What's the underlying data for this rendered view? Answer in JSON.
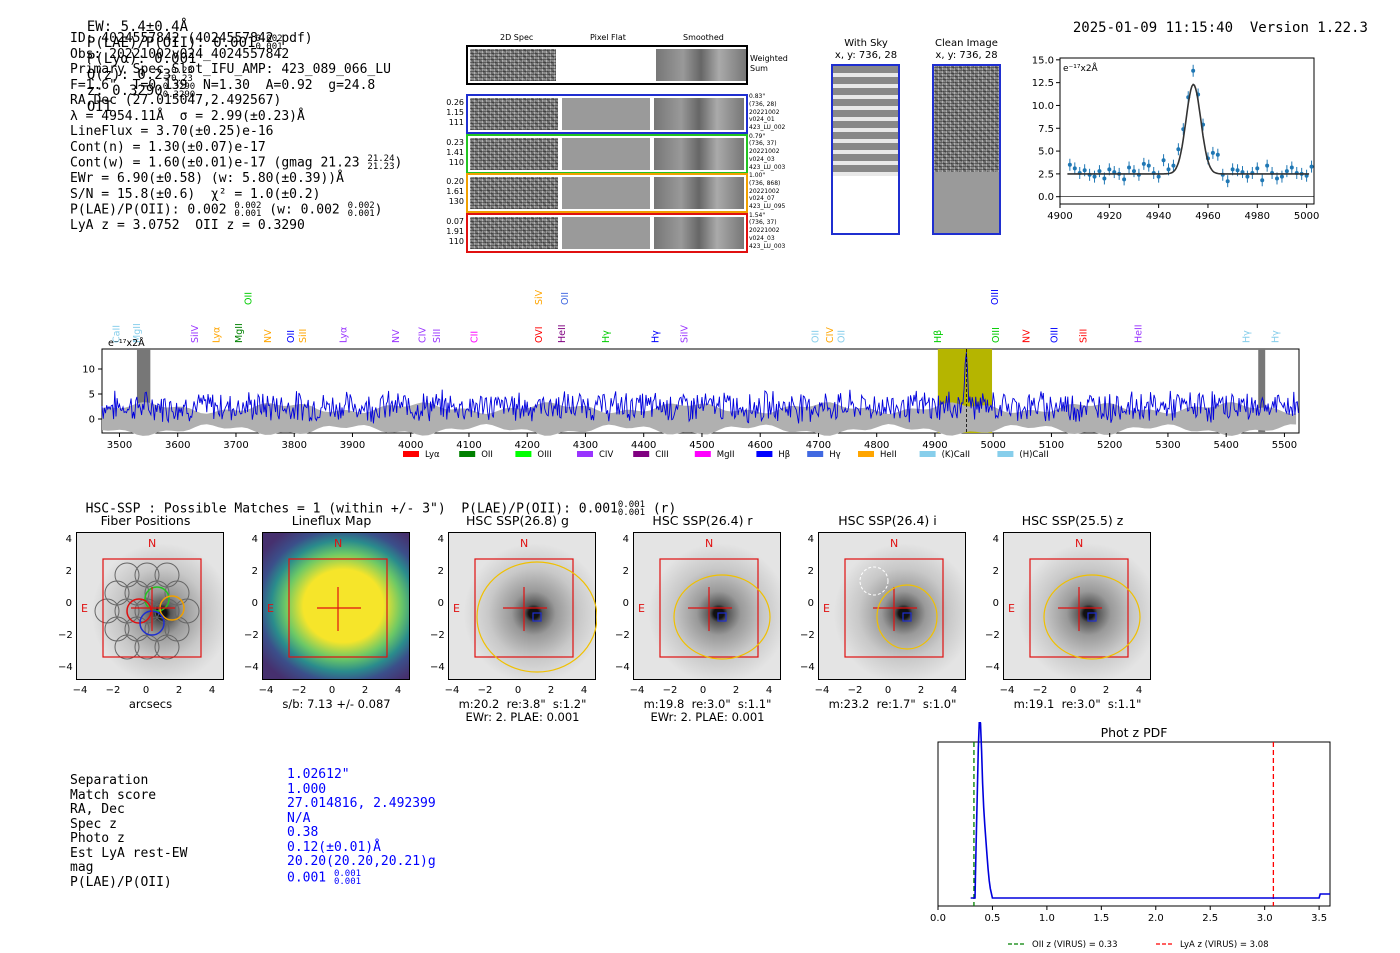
{
  "header": {
    "ew": "EW: 5.4±0.4Å",
    "plae_lbl": "P(LAE)/P(OII): 0.001",
    "plae_up": "0.002",
    "plae_dn": "0.001",
    "plya": "P(Lyα): 0.001",
    "qz_lbl": "Q(z): 0.23",
    "qz_up": "0.23",
    "qz_dn": "0.23",
    "z_lbl": "z: 0.3290",
    "z_up": "0.3290",
    "z_dn": "0.3290",
    "z_line": "OII",
    "timestamp": "2025-01-09 11:15:40",
    "version": "Version 1.22.3"
  },
  "info": {
    "id": "ID: 4024557842 (4024557842.pdf)",
    "obs": "Obs: 20221002v024_4024557842",
    "primary": "Primary Spec_Slot_IFU_AMP: 423_089_066_LU",
    "params": "F=1.6\"  T=0.139  N=1.30  A=0.92  g=24.8",
    "radec": "RA,Dec (27.015047,2.492567)",
    "lambda": "λ = 4954.11Å  σ = 2.99(±0.23)Å",
    "lineflux": "LineFlux = 3.70(±0.25)e-16",
    "contn": "Cont(n) = 1.30(±0.07)e-17",
    "contw": "Cont(w) = 1.60(±0.01)e-17 (gmag 21.23",
    "contw_up": "21.24",
    "contw_dn": "21.23",
    "ewr": "EWr = 6.90(±0.58) (w: 5.80(±0.39))Å",
    "sn": "S/N = 15.8(±0.6)  χ² = 1.0(±0.2)",
    "plae": "P(LAE)/P(OII): 0.002",
    "plae_up": "0.002",
    "plae_dn": "0.001",
    "plae_w": "(w: 0.002",
    "plae_w_up": "0.002",
    "plae_w_dn": "0.001",
    "lya": "LyA z = 3.0752  OII z = 0.3290"
  },
  "cutouts": {
    "col_titles": [
      "2D Spec",
      "Pixel Flat",
      "Smoothed"
    ],
    "weighted_sum": "Weighted Sum",
    "rows": [
      {
        "nums": [
          "0.26",
          "1.15",
          "111"
        ],
        "side": [
          "0.83\"",
          "(736, 28)",
          "20221002",
          "v024_01",
          "423_LU_002"
        ],
        "color": "#1f2fd0"
      },
      {
        "nums": [
          "0.23",
          "1.41",
          "110"
        ],
        "side": [
          "0.79\"",
          "(736, 37)",
          "20221002",
          "v024_03",
          "423_LU_003"
        ],
        "color": "#22c422"
      },
      {
        "nums": [
          "0.20",
          "1.61",
          "130"
        ],
        "side": [
          "1.00\"",
          "(736, 868)",
          "20221002",
          "v024_07",
          "423_LU_095"
        ],
        "color": "#f0a000"
      },
      {
        "nums": [
          "0.07",
          "1.91",
          "110"
        ],
        "side": [
          "1.54\"",
          "(736, 37)",
          "20221002",
          "v024_03",
          "423_LU_003"
        ],
        "color": "#e01010"
      }
    ]
  },
  "with_sky": {
    "title": "With Sky",
    "sub": "x, y: 736, 28"
  },
  "clean_image": {
    "title": "Clean Image",
    "sub": "x, y: 736, 28"
  },
  "fullspec_legend": [
    {
      "name": "Lyα",
      "color": "#ff0000"
    },
    {
      "name": "OII",
      "color": "#008000"
    },
    {
      "name": "OIII",
      "color": "#00ff00"
    },
    {
      "name": "CIV",
      "color": "#9933ff"
    },
    {
      "name": "CIII",
      "color": "#800080"
    },
    {
      "name": "MgII",
      "color": "#ff00ff"
    },
    {
      "name": "Hβ",
      "color": "#0000ff"
    },
    {
      "name": "Hγ",
      "color": "#4169e1"
    },
    {
      "name": "HeII",
      "color": "#ffa500"
    },
    {
      "name": "(K)CaII",
      "color": "#87ceeb"
    },
    {
      "name": "(H)CaII",
      "color": "#87ceeb"
    }
  ],
  "line_labels": [
    {
      "t": "OII",
      "w": 3727,
      "c": "#00cc00",
      "row": 0
    },
    {
      "t": "SiV",
      "w": 4225,
      "c": "#ffa500",
      "row": 0
    },
    {
      "t": "OII",
      "w": 4270,
      "c": "#4169e1",
      "row": 0
    },
    {
      "t": "OIII",
      "w": 5008,
      "c": "#0000ff",
      "row": 0
    },
    {
      "t": "CaII",
      "w": 3500,
      "c": "#87ceeb",
      "row": 1
    },
    {
      "t": "MgII",
      "w": 3535,
      "c": "#87ceeb",
      "row": 1
    },
    {
      "t": "SiIV",
      "w": 3635,
      "c": "#9933ff",
      "row": 1
    },
    {
      "t": "Lyα",
      "w": 3672,
      "c": "#ffa500",
      "row": 1
    },
    {
      "t": "MgII",
      "w": 3710,
      "c": "#008000",
      "row": 1
    },
    {
      "t": "NV",
      "w": 3760,
      "c": "#ffa500",
      "row": 1
    },
    {
      "t": "OII",
      "w": 3800,
      "c": "#0000ff",
      "row": 1
    },
    {
      "t": "SiII",
      "w": 3820,
      "c": "#ffa500",
      "row": 1
    },
    {
      "t": "Lyα",
      "w": 3890,
      "c": "#9933ff",
      "row": 1
    },
    {
      "t": "NV",
      "w": 3980,
      "c": "#9933ff",
      "row": 1
    },
    {
      "t": "CIV",
      "w": 4025,
      "c": "#9933ff",
      "row": 1
    },
    {
      "t": "SiII",
      "w": 4050,
      "c": "#9933ff",
      "row": 1
    },
    {
      "t": "CII",
      "w": 4115,
      "c": "#ff00ff",
      "row": 1
    },
    {
      "t": "OVI",
      "w": 4225,
      "c": "#ff0000",
      "row": 1
    },
    {
      "t": "HeII",
      "w": 4265,
      "c": "#800080",
      "row": 1
    },
    {
      "t": "Hγ",
      "w": 4340,
      "c": "#00cc00",
      "row": 1
    },
    {
      "t": "Hγ",
      "w": 4425,
      "c": "#0000ff",
      "row": 1
    },
    {
      "t": "SiIV",
      "w": 4475,
      "c": "#9933ff",
      "row": 1
    },
    {
      "t": "OII",
      "w": 4700,
      "c": "#87ceeb",
      "row": 1
    },
    {
      "t": "CIV",
      "w": 4725,
      "c": "#ffa500",
      "row": 1
    },
    {
      "t": "OII",
      "w": 4745,
      "c": "#87ceeb",
      "row": 1
    },
    {
      "t": "Hβ",
      "w": 4910,
      "c": "#00cc00",
      "row": 1
    },
    {
      "t": "OIII",
      "w": 5010,
      "c": "#00cc00",
      "row": 1
    },
    {
      "t": "NV",
      "w": 5062,
      "c": "#ff0000",
      "row": 1
    },
    {
      "t": "OIII",
      "w": 5110,
      "c": "#0000ff",
      "row": 1
    },
    {
      "t": "SiII",
      "w": 5160,
      "c": "#ff0000",
      "row": 1
    },
    {
      "t": "HeII",
      "w": 5255,
      "c": "#9933ff",
      "row": 1
    },
    {
      "t": "Hγ",
      "w": 5440,
      "c": "#87ceeb",
      "row": 1
    },
    {
      "t": "Hγ",
      "w": 5490,
      "c": "#87ceeb",
      "row": 1
    }
  ],
  "hsc": {
    "header": "HSC-SSP : Possible Matches = 1 (within +/- 3\")",
    "header_plae": "P(LAE)/P(OII): 0.001",
    "header_up": "0.001",
    "header_dn": "0.001",
    "header_band": "(r)",
    "panels": [
      {
        "title": "Fiber Positions",
        "cap1": "arcsecs",
        "cap2": ""
      },
      {
        "title": "Lineflux Map",
        "cap1": "s/b: 7.13 +/- 0.087",
        "cap2": ""
      },
      {
        "title": "HSC SSP(26.8) g",
        "cap1": "m:20.2  re:3.8\"  s:1.2\"",
        "cap2": "EWr: 2. PLAE: 0.001"
      },
      {
        "title": "HSC SSP(26.4) r",
        "cap1": "m:19.8  re:3.0\"  s:1.1\"",
        "cap2": "EWr: 2. PLAE: 0.001"
      },
      {
        "title": "HSC SSP(26.4) i",
        "cap1": "m:23.2  re:1.7\"  s:1.0\"",
        "cap2": ""
      },
      {
        "title": "HSC SSP(25.5) z",
        "cap1": "m:19.1  re:3.0\"  s:1.1\"",
        "cap2": ""
      }
    ],
    "north": "N",
    "east": "E"
  },
  "match": {
    "labels": [
      "Separation",
      "Match score",
      "RA, Dec",
      "Spec z",
      "Photo z",
      "Est LyA rest-EW",
      "mag",
      "P(LAE)/P(OII)"
    ],
    "values": [
      "1.02612\"",
      "1.000",
      "27.014816, 2.492399",
      "N/A",
      "0.38",
      "0.12(±0.01)Å",
      "20.20(20.20,20.21)g",
      "0.001"
    ],
    "plae_up": "0.001",
    "plae_dn": "0.001"
  },
  "chart_data": [
    {
      "type": "scatter",
      "title": "",
      "ylabel": "e⁻¹⁷x2Å",
      "x_ticks": [
        "4900",
        "4920",
        "4940",
        "4960",
        "4980",
        "5000"
      ],
      "y_ticks": [
        "0.0",
        "2.5",
        "5.0",
        "7.5",
        "10.0",
        "12.5",
        "15.0"
      ],
      "xlim": [
        4900,
        5003
      ],
      "ylim": [
        -0.8,
        15.2
      ],
      "x": [
        4904,
        4906,
        4908,
        4910,
        4912,
        4914,
        4916,
        4918,
        4920,
        4922,
        4924,
        4926,
        4928,
        4930,
        4932,
        4934,
        4936,
        4938,
        4940,
        4942,
        4944,
        4946,
        4948,
        4950,
        4952,
        4954,
        4956,
        4958,
        4960,
        4962,
        4964,
        4966,
        4968,
        4970,
        4972,
        4974,
        4976,
        4978,
        4980,
        4982,
        4984,
        4986,
        4988,
        4990,
        4992,
        4994,
        4996,
        4998,
        5000,
        5002
      ],
      "y": [
        3.5,
        3.1,
        2.6,
        2.9,
        2.4,
        2.2,
        2.8,
        2.0,
        3.0,
        2.7,
        2.5,
        1.9,
        3.2,
        2.8,
        2.4,
        3.6,
        3.4,
        2.6,
        2.2,
        4.0,
        3.0,
        3.4,
        5.2,
        7.4,
        10.9,
        13.8,
        11.2,
        7.9,
        4.2,
        4.8,
        4.6,
        2.4,
        1.7,
        3.0,
        2.9,
        2.7,
        2.2,
        2.6,
        3.1,
        1.8,
        3.4,
        2.6,
        2.0,
        2.2,
        2.8,
        3.2,
        2.6,
        2.5,
        2.3,
        3.3
      ],
      "fit": {
        "center": 4954.1,
        "sigma": 2.99,
        "amp": 9.8,
        "cont": 2.5
      }
    },
    {
      "type": "line",
      "title": "",
      "ylabel": "e⁻¹⁷x2Å",
      "xlim": [
        3470,
        5525
      ],
      "ylim": [
        -2.8,
        14
      ],
      "x_ticks": [
        "3500",
        "3600",
        "3700",
        "3800",
        "3900",
        "4000",
        "4100",
        "4200",
        "4300",
        "4400",
        "4500",
        "4600",
        "4700",
        "4800",
        "4900",
        "5000",
        "5100",
        "5200",
        "5300",
        "5400",
        "5500"
      ],
      "y_ticks": [
        "0",
        "5",
        "10"
      ],
      "highlight": [
        4905,
        4998
      ],
      "peak": 4954,
      "masked": [
        [
          3530,
          3553
        ],
        [
          5455,
          5467
        ]
      ]
    },
    {
      "type": "line",
      "title": "Phot z PDF",
      "x_ticks": [
        "0.0",
        "0.5",
        "1.0",
        "1.5",
        "2.0",
        "2.5",
        "3.0",
        "3.5"
      ],
      "xlim": [
        0,
        3.6
      ],
      "markers": [
        {
          "label": "OII z (VIRUS) = 0.33",
          "z": 0.33,
          "color": "#008000"
        },
        {
          "label": "LyA z (VIRUS) = 3.08",
          "z": 3.08,
          "color": "#ff0000"
        }
      ],
      "peak": 0.38
    }
  ]
}
